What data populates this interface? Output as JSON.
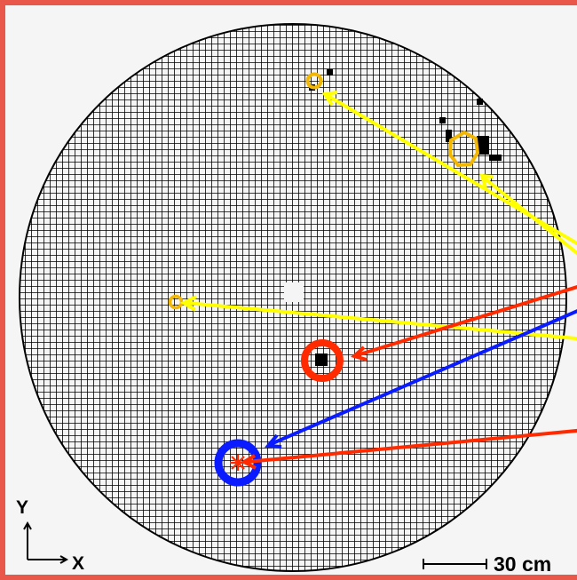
{
  "axes": {
    "y_label": "Y",
    "x_label": "X"
  },
  "scale_bar": {
    "label": "30 cm"
  },
  "colors": {
    "frame": "#e8574a",
    "grid": "#000000",
    "yellow": "#ffff00",
    "orange": "#f2b705",
    "red": "#ff2a00",
    "blue": "#0a1cff"
  }
}
